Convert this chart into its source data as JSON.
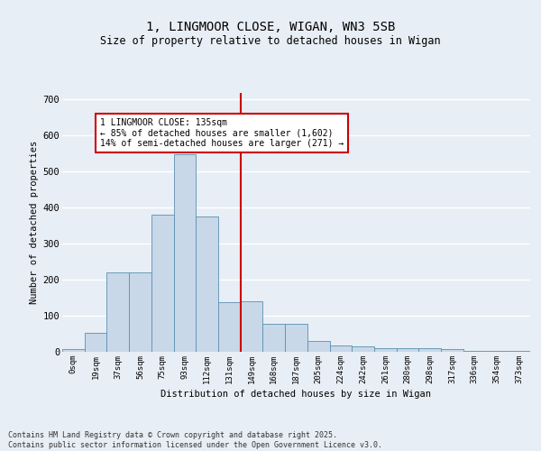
{
  "title1": "1, LINGMOOR CLOSE, WIGAN, WN3 5SB",
  "title2": "Size of property relative to detached houses in Wigan",
  "xlabel": "Distribution of detached houses by size in Wigan",
  "ylabel": "Number of detached properties",
  "bar_labels": [
    "0sqm",
    "19sqm",
    "37sqm",
    "56sqm",
    "75sqm",
    "93sqm",
    "112sqm",
    "131sqm",
    "149sqm",
    "168sqm",
    "187sqm",
    "205sqm",
    "224sqm",
    "242sqm",
    "261sqm",
    "280sqm",
    "298sqm",
    "317sqm",
    "336sqm",
    "354sqm",
    "373sqm"
  ],
  "bar_heights": [
    7,
    52,
    220,
    220,
    380,
    548,
    375,
    138,
    140,
    77,
    77,
    30,
    18,
    14,
    10,
    10,
    10,
    8,
    2,
    2,
    3
  ],
  "bar_color": "#c8d8e8",
  "bar_edge_color": "#5b8faf",
  "vline_x": 7.5,
  "vline_color": "#cc0000",
  "annotation_text": "1 LINGMOOR CLOSE: 135sqm\n← 85% of detached houses are smaller (1,602)\n14% of semi-detached houses are larger (271) →",
  "annotation_box_color": "white",
  "annotation_box_edge": "#cc0000",
  "ylim": [
    0,
    720
  ],
  "yticks": [
    0,
    100,
    200,
    300,
    400,
    500,
    600,
    700
  ],
  "footer": "Contains HM Land Registry data © Crown copyright and database right 2025.\nContains public sector information licensed under the Open Government Licence v3.0.",
  "bg_color": "#e8eef5",
  "plot_bg_color": "#e8eef5",
  "grid_color": "white"
}
